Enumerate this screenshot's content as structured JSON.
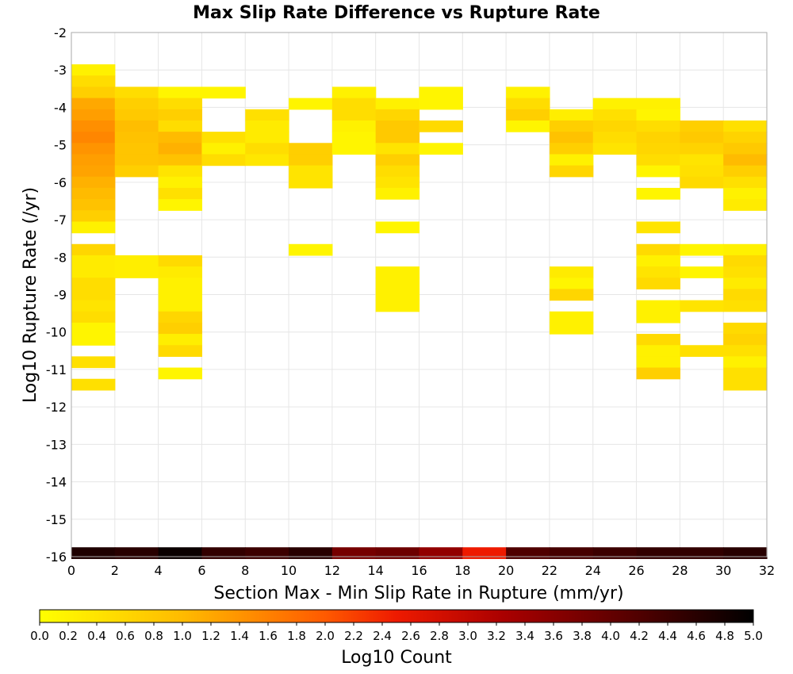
{
  "chart_data": {
    "type": "heatmap",
    "title": "Max Slip Rate Difference vs Rupture Rate",
    "xlabel": "Section Max - Min Slip Rate in Rupture (mm/yr)",
    "ylabel": "Log10 Rupture Rate (/yr)",
    "xlim": [
      0,
      32
    ],
    "ylim": [
      -16,
      -2
    ],
    "x_ticks": [
      "0",
      "2",
      "4",
      "6",
      "8",
      "10",
      "12",
      "14",
      "16",
      "18",
      "20",
      "22",
      "24",
      "26",
      "28",
      "30",
      "32"
    ],
    "y_ticks": [
      "-2",
      "-3",
      "-4",
      "-5",
      "-6",
      "-7",
      "-8",
      "-9",
      "-10",
      "-11",
      "-12",
      "-13",
      "-14",
      "-15",
      "-16"
    ],
    "grid": true,
    "colorbar": {
      "label": "Log10 Count",
      "range": [
        0,
        5
      ],
      "ticks": [
        "0.0",
        "0.2",
        "0.4",
        "0.6",
        "0.8",
        "1.0",
        "1.2",
        "1.4",
        "1.6",
        "1.8",
        "2.0",
        "2.2",
        "2.4",
        "2.6",
        "2.8",
        "3.0",
        "3.2",
        "3.4",
        "3.6",
        "3.8",
        "4.0",
        "4.2",
        "4.4",
        "4.6",
        "4.8",
        "5.0"
      ],
      "placement": "bottom"
    },
    "cell_size": {
      "x": 2,
      "y": 0.3
    },
    "cells": [
      {
        "x": 0,
        "y": -3.0,
        "v": 0.2
      },
      {
        "x": 0,
        "y": -3.3,
        "v": 0.5
      },
      {
        "x": 0,
        "y": -3.6,
        "v": 0.7
      },
      {
        "x": 0,
        "y": -3.9,
        "v": 1.2
      },
      {
        "x": 0,
        "y": -4.2,
        "v": 1.3
      },
      {
        "x": 0,
        "y": -4.5,
        "v": 1.45
      },
      {
        "x": 0,
        "y": -4.8,
        "v": 1.55
      },
      {
        "x": 0,
        "y": -5.1,
        "v": 1.4
      },
      {
        "x": 0,
        "y": -5.4,
        "v": 1.3
      },
      {
        "x": 0,
        "y": -5.7,
        "v": 1.25
      },
      {
        "x": 0,
        "y": -6.0,
        "v": 1.1
      },
      {
        "x": 0,
        "y": -6.3,
        "v": 1.0
      },
      {
        "x": 0,
        "y": -6.6,
        "v": 0.9
      },
      {
        "x": 0,
        "y": -6.9,
        "v": 0.7
      },
      {
        "x": 0,
        "y": -7.2,
        "v": 0.2
      },
      {
        "x": 0,
        "y": -7.8,
        "v": 0.6
      },
      {
        "x": 0,
        "y": -8.1,
        "v": 0.3
      },
      {
        "x": 0,
        "y": -8.4,
        "v": 0.3
      },
      {
        "x": 0,
        "y": -8.7,
        "v": 0.5
      },
      {
        "x": 0,
        "y": -9.0,
        "v": 0.5
      },
      {
        "x": 0,
        "y": -9.3,
        "v": 0.4
      },
      {
        "x": 0,
        "y": -9.6,
        "v": 0.5
      },
      {
        "x": 0,
        "y": -9.9,
        "v": 0.15
      },
      {
        "x": 0,
        "y": -10.2,
        "v": 0.15
      },
      {
        "x": 0,
        "y": -10.8,
        "v": 0.45
      },
      {
        "x": 0,
        "y": -11.4,
        "v": 0.45
      },
      {
        "x": 2,
        "y": -3.6,
        "v": 0.5
      },
      {
        "x": 2,
        "y": -3.9,
        "v": 0.7
      },
      {
        "x": 2,
        "y": -4.2,
        "v": 0.8
      },
      {
        "x": 2,
        "y": -4.5,
        "v": 0.95
      },
      {
        "x": 2,
        "y": -4.8,
        "v": 0.9
      },
      {
        "x": 2,
        "y": -5.1,
        "v": 0.85
      },
      {
        "x": 2,
        "y": -5.4,
        "v": 0.85
      },
      {
        "x": 2,
        "y": -5.7,
        "v": 0.7
      },
      {
        "x": 2,
        "y": -8.1,
        "v": 0.25
      },
      {
        "x": 2,
        "y": -8.4,
        "v": 0.25
      },
      {
        "x": 4,
        "y": -3.6,
        "v": 0.15
      },
      {
        "x": 4,
        "y": -3.9,
        "v": 0.5
      },
      {
        "x": 4,
        "y": -4.2,
        "v": 0.7
      },
      {
        "x": 4,
        "y": -4.5,
        "v": 0.5
      },
      {
        "x": 4,
        "y": -4.8,
        "v": 1.0
      },
      {
        "x": 4,
        "y": -5.1,
        "v": 1.1
      },
      {
        "x": 4,
        "y": -5.4,
        "v": 0.9
      },
      {
        "x": 4,
        "y": -5.7,
        "v": 0.4
      },
      {
        "x": 4,
        "y": -6.0,
        "v": 0.2
      },
      {
        "x": 4,
        "y": -6.3,
        "v": 0.45
      },
      {
        "x": 4,
        "y": -6.6,
        "v": 0.15
      },
      {
        "x": 4,
        "y": -8.1,
        "v": 0.55
      },
      {
        "x": 4,
        "y": -8.4,
        "v": 0.3
      },
      {
        "x": 4,
        "y": -8.7,
        "v": 0.2
      },
      {
        "x": 4,
        "y": -9.0,
        "v": 0.2
      },
      {
        "x": 4,
        "y": -9.3,
        "v": 0.2
      },
      {
        "x": 4,
        "y": -9.6,
        "v": 0.6
      },
      {
        "x": 4,
        "y": -9.9,
        "v": 0.7
      },
      {
        "x": 4,
        "y": -10.2,
        "v": 0.25
      },
      {
        "x": 4,
        "y": -10.5,
        "v": 0.55
      },
      {
        "x": 4,
        "y": -11.1,
        "v": 0.15
      },
      {
        "x": 6,
        "y": -3.6,
        "v": 0.15
      },
      {
        "x": 6,
        "y": -4.8,
        "v": 0.45
      },
      {
        "x": 6,
        "y": -5.1,
        "v": 0.2
      },
      {
        "x": 6,
        "y": -5.4,
        "v": 0.5
      },
      {
        "x": 8,
        "y": -4.2,
        "v": 0.45
      },
      {
        "x": 8,
        "y": -4.5,
        "v": 0.3
      },
      {
        "x": 8,
        "y": -4.8,
        "v": 0.3
      },
      {
        "x": 8,
        "y": -5.1,
        "v": 0.5
      },
      {
        "x": 8,
        "y": -5.4,
        "v": 0.35
      },
      {
        "x": 10,
        "y": -3.9,
        "v": 0.15
      },
      {
        "x": 10,
        "y": -5.1,
        "v": 0.7
      },
      {
        "x": 10,
        "y": -5.4,
        "v": 0.7
      },
      {
        "x": 10,
        "y": -5.7,
        "v": 0.4
      },
      {
        "x": 10,
        "y": -6.0,
        "v": 0.4
      },
      {
        "x": 10,
        "y": -7.8,
        "v": 0.15
      },
      {
        "x": 12,
        "y": -3.6,
        "v": 0.2
      },
      {
        "x": 12,
        "y": -3.9,
        "v": 0.5
      },
      {
        "x": 12,
        "y": -4.2,
        "v": 0.5
      },
      {
        "x": 12,
        "y": -4.5,
        "v": 0.2
      },
      {
        "x": 12,
        "y": -4.8,
        "v": 0.15
      },
      {
        "x": 12,
        "y": -5.1,
        "v": 0.15
      },
      {
        "x": 14,
        "y": -3.9,
        "v": 0.2
      },
      {
        "x": 14,
        "y": -4.2,
        "v": 0.6
      },
      {
        "x": 14,
        "y": -4.5,
        "v": 0.8
      },
      {
        "x": 14,
        "y": -4.8,
        "v": 0.8
      },
      {
        "x": 14,
        "y": -5.1,
        "v": 0.4
      },
      {
        "x": 14,
        "y": -5.4,
        "v": 0.7
      },
      {
        "x": 14,
        "y": -5.7,
        "v": 0.5
      },
      {
        "x": 14,
        "y": -6.0,
        "v": 0.4
      },
      {
        "x": 14,
        "y": -6.3,
        "v": 0.2
      },
      {
        "x": 14,
        "y": -7.2,
        "v": 0.15
      },
      {
        "x": 14,
        "y": -8.4,
        "v": 0.2
      },
      {
        "x": 14,
        "y": -8.7,
        "v": 0.2
      },
      {
        "x": 14,
        "y": -9.0,
        "v": 0.2
      },
      {
        "x": 14,
        "y": -9.3,
        "v": 0.2
      },
      {
        "x": 16,
        "y": -3.6,
        "v": 0.15
      },
      {
        "x": 16,
        "y": -3.9,
        "v": 0.15
      },
      {
        "x": 16,
        "y": -4.5,
        "v": 0.55
      },
      {
        "x": 16,
        "y": -5.1,
        "v": 0.15
      },
      {
        "x": 20,
        "y": -3.6,
        "v": 0.2
      },
      {
        "x": 20,
        "y": -3.9,
        "v": 0.5
      },
      {
        "x": 20,
        "y": -4.2,
        "v": 0.7
      },
      {
        "x": 20,
        "y": -4.5,
        "v": 0.15
      },
      {
        "x": 22,
        "y": -4.2,
        "v": 0.25
      },
      {
        "x": 22,
        "y": -4.5,
        "v": 0.7
      },
      {
        "x": 22,
        "y": -4.8,
        "v": 0.9
      },
      {
        "x": 22,
        "y": -5.1,
        "v": 0.7
      },
      {
        "x": 22,
        "y": -5.4,
        "v": 0.2
      },
      {
        "x": 22,
        "y": -5.7,
        "v": 0.6
      },
      {
        "x": 22,
        "y": -8.4,
        "v": 0.3
      },
      {
        "x": 22,
        "y": -8.7,
        "v": 0.15
      },
      {
        "x": 22,
        "y": -9.0,
        "v": 0.6
      },
      {
        "x": 22,
        "y": -9.6,
        "v": 0.2
      },
      {
        "x": 22,
        "y": -9.9,
        "v": 0.2
      },
      {
        "x": 24,
        "y": -3.9,
        "v": 0.2
      },
      {
        "x": 24,
        "y": -4.2,
        "v": 0.45
      },
      {
        "x": 24,
        "y": -4.5,
        "v": 0.6
      },
      {
        "x": 24,
        "y": -4.8,
        "v": 0.5
      },
      {
        "x": 24,
        "y": -5.1,
        "v": 0.4
      },
      {
        "x": 26,
        "y": -3.9,
        "v": 0.2
      },
      {
        "x": 26,
        "y": -4.2,
        "v": 0.15
      },
      {
        "x": 26,
        "y": -4.5,
        "v": 0.5
      },
      {
        "x": 26,
        "y": -4.8,
        "v": 0.65
      },
      {
        "x": 26,
        "y": -5.1,
        "v": 0.6
      },
      {
        "x": 26,
        "y": -5.4,
        "v": 0.5
      },
      {
        "x": 26,
        "y": -5.7,
        "v": 0.15
      },
      {
        "x": 26,
        "y": -6.3,
        "v": 0.15
      },
      {
        "x": 26,
        "y": -7.2,
        "v": 0.4
      },
      {
        "x": 26,
        "y": -7.8,
        "v": 0.55
      },
      {
        "x": 26,
        "y": -8.1,
        "v": 0.2
      },
      {
        "x": 26,
        "y": -8.4,
        "v": 0.4
      },
      {
        "x": 26,
        "y": -8.7,
        "v": 0.55
      },
      {
        "x": 26,
        "y": -9.3,
        "v": 0.2
      },
      {
        "x": 26,
        "y": -9.6,
        "v": 0.2
      },
      {
        "x": 26,
        "y": -10.2,
        "v": 0.55
      },
      {
        "x": 26,
        "y": -10.5,
        "v": 0.2
      },
      {
        "x": 26,
        "y": -10.8,
        "v": 0.2
      },
      {
        "x": 26,
        "y": -11.1,
        "v": 0.7
      },
      {
        "x": 28,
        "y": -4.5,
        "v": 0.7
      },
      {
        "x": 28,
        "y": -4.8,
        "v": 0.8
      },
      {
        "x": 28,
        "y": -5.1,
        "v": 0.65
      },
      {
        "x": 28,
        "y": -5.4,
        "v": 0.4
      },
      {
        "x": 28,
        "y": -5.7,
        "v": 0.45
      },
      {
        "x": 28,
        "y": -6.0,
        "v": 0.55
      },
      {
        "x": 28,
        "y": -7.8,
        "v": 0.15
      },
      {
        "x": 28,
        "y": -8.4,
        "v": 0.15
      },
      {
        "x": 28,
        "y": -9.3,
        "v": 0.4
      },
      {
        "x": 28,
        "y": -10.5,
        "v": 0.45
      },
      {
        "x": 30,
        "y": -4.5,
        "v": 0.45
      },
      {
        "x": 30,
        "y": -4.8,
        "v": 0.65
      },
      {
        "x": 30,
        "y": -5.1,
        "v": 0.8
      },
      {
        "x": 30,
        "y": -5.4,
        "v": 1.0
      },
      {
        "x": 30,
        "y": -5.7,
        "v": 0.7
      },
      {
        "x": 30,
        "y": -6.0,
        "v": 0.45
      },
      {
        "x": 30,
        "y": -6.3,
        "v": 0.2
      },
      {
        "x": 30,
        "y": -6.6,
        "v": 0.3
      },
      {
        "x": 30,
        "y": -7.8,
        "v": 0.2
      },
      {
        "x": 30,
        "y": -8.1,
        "v": 0.55
      },
      {
        "x": 30,
        "y": -8.4,
        "v": 0.45
      },
      {
        "x": 30,
        "y": -8.7,
        "v": 0.3
      },
      {
        "x": 30,
        "y": -9.0,
        "v": 0.55
      },
      {
        "x": 30,
        "y": -9.3,
        "v": 0.45
      },
      {
        "x": 30,
        "y": -9.9,
        "v": 0.55
      },
      {
        "x": 30,
        "y": -10.2,
        "v": 0.65
      },
      {
        "x": 30,
        "y": -10.5,
        "v": 0.45
      },
      {
        "x": 30,
        "y": -10.8,
        "v": 0.2
      },
      {
        "x": 30,
        "y": -11.1,
        "v": 0.45
      },
      {
        "x": 30,
        "y": -11.4,
        "v": 0.45
      },
      {
        "x": 0,
        "y": -15.9,
        "v": 4.7
      },
      {
        "x": 2,
        "y": -15.9,
        "v": 4.6
      },
      {
        "x": 4,
        "y": -15.9,
        "v": 4.9
      },
      {
        "x": 6,
        "y": -15.9,
        "v": 4.5
      },
      {
        "x": 8,
        "y": -15.9,
        "v": 4.4
      },
      {
        "x": 10,
        "y": -15.9,
        "v": 4.6
      },
      {
        "x": 12,
        "y": -15.9,
        "v": 3.8
      },
      {
        "x": 14,
        "y": -15.9,
        "v": 3.9
      },
      {
        "x": 16,
        "y": -15.9,
        "v": 3.5
      },
      {
        "x": 18,
        "y": -15.9,
        "v": 2.5
      },
      {
        "x": 20,
        "y": -15.9,
        "v": 4.2
      },
      {
        "x": 22,
        "y": -15.9,
        "v": 4.3
      },
      {
        "x": 24,
        "y": -15.9,
        "v": 4.4
      },
      {
        "x": 26,
        "y": -15.9,
        "v": 4.5
      },
      {
        "x": 28,
        "y": -15.9,
        "v": 4.5
      },
      {
        "x": 30,
        "y": -15.9,
        "v": 4.6
      }
    ]
  }
}
